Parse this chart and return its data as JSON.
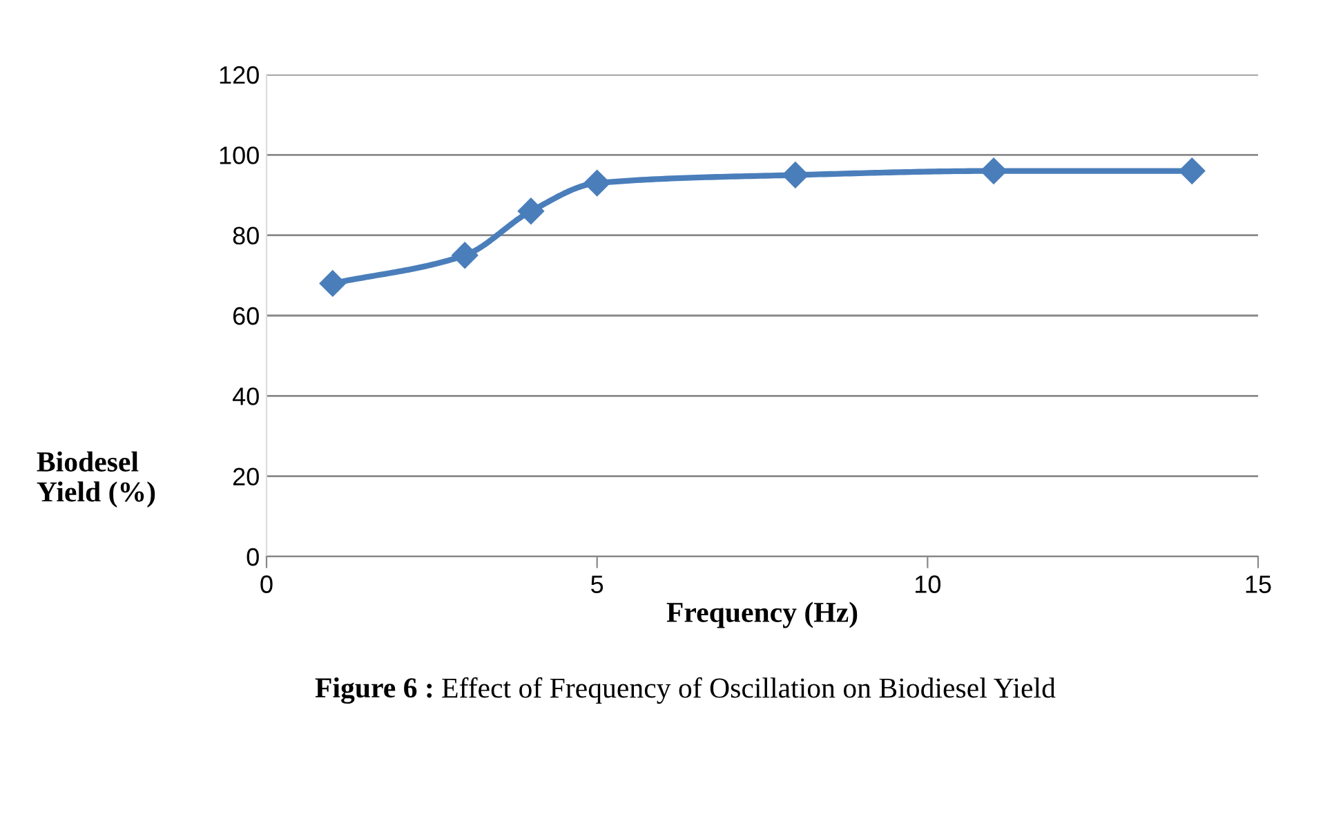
{
  "chart_data": {
    "type": "line",
    "xlabel": "Frequency (Hz)",
    "ylabel": "Biodesel\nYield (%)",
    "annotations": [
      "Figure 6 :",
      "Effect of Frequency of Oscillation on Biodiesel Yield"
    ],
    "series": [
      {
        "color": "#4a7ebb",
        "x": [
          1,
          3,
          4,
          5,
          8,
          11,
          14
        ],
        "values": [
          68,
          75,
          86,
          93,
          95,
          96,
          96
        ]
      }
    ],
    "xlim": [
      0,
      15
    ],
    "xticks": [
      0,
      5,
      10,
      15
    ],
    "ylim": [
      0,
      120
    ],
    "yticks": [
      0,
      20,
      40,
      60,
      80,
      100,
      120
    ],
    "grid": "y",
    "marker": "diamond",
    "line_style": "solid"
  }
}
